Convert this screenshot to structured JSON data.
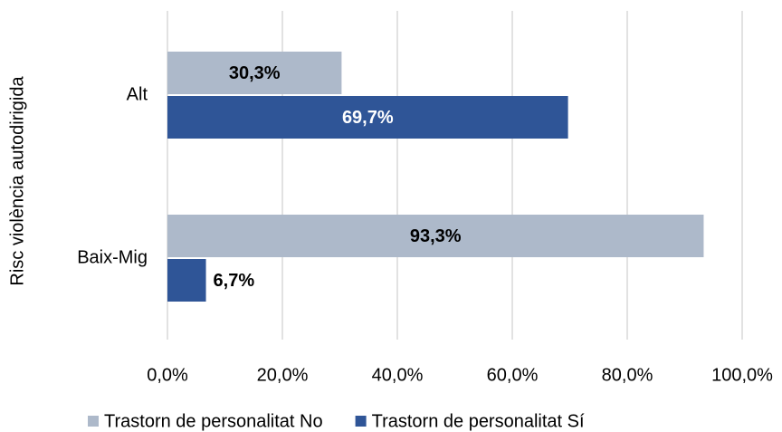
{
  "chart_data": {
    "type": "bar",
    "orientation": "horizontal",
    "y_label": "Risc violència autodirigida",
    "categories": [
      "Alt",
      "Baix-Mig"
    ],
    "series": [
      {
        "name": "Trastorn de personalitat No",
        "color": "#adb9ca",
        "values": [
          30.3,
          93.3
        ],
        "value_labels": [
          "30,3%",
          "93,3%"
        ]
      },
      {
        "name": "Trastorn de personalitat Sí",
        "color": "#2f5597",
        "values": [
          69.7,
          6.7
        ],
        "value_labels": [
          "69,7%",
          "6,7%"
        ]
      }
    ],
    "xlim": [
      0,
      100
    ],
    "xticks": [
      {
        "value": 0,
        "label": "0,0%"
      },
      {
        "value": 20,
        "label": "20,0%"
      },
      {
        "value": 40,
        "label": "40,0%"
      },
      {
        "value": 60,
        "label": "60,0%"
      },
      {
        "value": 80,
        "label": "80,0%"
      },
      {
        "value": 100,
        "label": "100,0%"
      }
    ],
    "grid": true,
    "legend": "bottom"
  }
}
